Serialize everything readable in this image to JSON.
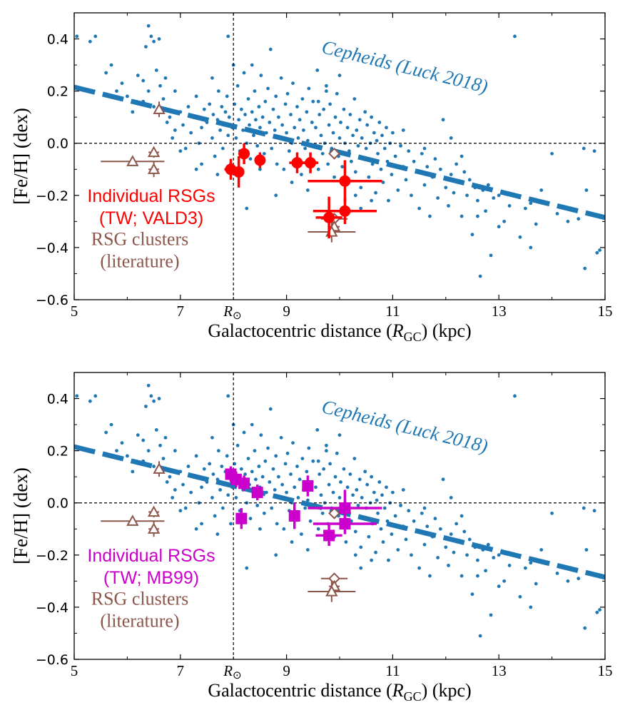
{
  "colors": {
    "cepheid": "#1f77b4",
    "rsg_vald3": "#ff0000",
    "rsg_mb99": "#cc00cc",
    "clusters": "#8c564b",
    "axis": "#000000"
  },
  "common": {
    "xlabel_prefix": "Galactocentric distance (",
    "xlabel_sym": "R",
    "xlabel_sub": "GC",
    "xlabel_suffix": ")  (kpc)",
    "ylabel": "[Fe/H]  (dex)",
    "rsun_label": "R",
    "rsun_sub": "⊙",
    "xticks": [
      5,
      7,
      9,
      11,
      13,
      15
    ],
    "yticks": [
      -0.6,
      -0.4,
      -0.2,
      0.0,
      0.2,
      0.4
    ],
    "ytick_labels": [
      "−0.6",
      "−0.4",
      "−0.2",
      "0.0",
      "0.2",
      "0.4"
    ],
    "xlim": [
      5,
      15
    ],
    "ylim": [
      -0.6,
      0.5
    ],
    "r_sun": 8.0,
    "cepheid_label": "Cepheids (Luck 2018)",
    "cepheid_fit": {
      "x0": 5,
      "y0": 0.215,
      "x1": 15,
      "y1": -0.285
    },
    "cluster_label_1": "RSG clusters",
    "cluster_label_2": "(literature)"
  },
  "chart_data": [
    {
      "type": "scatter",
      "panel": "top",
      "title": "",
      "xlabel": "Galactocentric distance (RGC)  (kpc)",
      "ylabel": "[Fe/H]  (dex)",
      "xlim": [
        5,
        15
      ],
      "ylim": [
        -0.6,
        0.5
      ],
      "legend_line1": "Individual RSGs",
      "legend_line2": "(TW; VALD3)",
      "series": [
        {
          "name": "Individual RSGs (TW; VALD3)",
          "marker": "circle",
          "points": [
            {
              "x": 7.95,
              "y": -0.1,
              "xerr": 0.12,
              "yerr": 0.04
            },
            {
              "x": 8.1,
              "y": -0.11,
              "xerr": 0.1,
              "yerr": 0.06
            },
            {
              "x": 8.2,
              "y": -0.04,
              "xerr": 0.08,
              "yerr": 0.04
            },
            {
              "x": 8.5,
              "y": -0.065,
              "xerr": 0.06,
              "yerr": 0.03
            },
            {
              "x": 9.2,
              "y": -0.075,
              "xerr": 0.15,
              "yerr": 0.04
            },
            {
              "x": 9.45,
              "y": -0.075,
              "xerr": 0.15,
              "yerr": 0.04
            },
            {
              "x": 10.1,
              "y": -0.145,
              "xerr": 0.7,
              "yerr": 0.08
            },
            {
              "x": 10.1,
              "y": -0.26,
              "xerr": 0.6,
              "yerr": 0.05
            },
            {
              "x": 9.8,
              "y": -0.285,
              "xerr": 0.25,
              "yerr": 0.08
            }
          ]
        },
        {
          "name": "RSG clusters (literature)",
          "marker": "triangle/diamond",
          "points": [
            {
              "x": 6.6,
              "y": 0.13,
              "xerr": 0.05,
              "yerr": 0.03,
              "m": "tri"
            },
            {
              "x": 6.1,
              "y": -0.07,
              "xerr": 0.6,
              "yerr": 0.0,
              "m": "tri"
            },
            {
              "x": 6.5,
              "y": -0.035,
              "xerr": 0.1,
              "yerr": 0.02,
              "m": "tri"
            },
            {
              "x": 6.5,
              "y": -0.1,
              "xerr": 0.1,
              "yerr": 0.03,
              "m": "tri"
            },
            {
              "x": 9.9,
              "y": -0.04,
              "xerr": 0.0,
              "yerr": 0.0,
              "m": "dia"
            },
            {
              "x": 9.9,
              "y": -0.29,
              "xerr": 0.25,
              "yerr": 0.02,
              "m": "dia"
            },
            {
              "x": 9.9,
              "y": -0.32,
              "xerr": 0.1,
              "yerr": 0.02,
              "m": "tri"
            },
            {
              "x": 9.85,
              "y": -0.34,
              "xerr": 0.45,
              "yerr": 0.04,
              "m": "tri"
            }
          ]
        }
      ]
    },
    {
      "type": "scatter",
      "panel": "bottom",
      "title": "",
      "xlabel": "Galactocentric distance (RGC)  (kpc)",
      "ylabel": "[Fe/H]  (dex)",
      "xlim": [
        5,
        15
      ],
      "ylim": [
        -0.6,
        0.5
      ],
      "legend_line1": "Individual RSGs",
      "legend_line2": "(TW; MB99)",
      "series": [
        {
          "name": "Individual RSGs (TW; MB99)",
          "marker": "square",
          "points": [
            {
              "x": 7.95,
              "y": 0.11,
              "xerr": 0.08,
              "yerr": 0.03
            },
            {
              "x": 8.05,
              "y": 0.09,
              "xerr": 0.1,
              "yerr": 0.03
            },
            {
              "x": 8.2,
              "y": 0.075,
              "xerr": 0.1,
              "yerr": 0.03
            },
            {
              "x": 8.45,
              "y": 0.04,
              "xerr": 0.08,
              "yerr": 0.03
            },
            {
              "x": 8.15,
              "y": -0.06,
              "xerr": 0.08,
              "yerr": 0.04
            },
            {
              "x": 9.15,
              "y": -0.05,
              "xerr": 0.1,
              "yerr": 0.05
            },
            {
              "x": 9.4,
              "y": 0.065,
              "xerr": 0.1,
              "yerr": 0.04
            },
            {
              "x": 10.1,
              "y": -0.02,
              "xerr": 0.7,
              "yerr": 0.07
            },
            {
              "x": 10.1,
              "y": -0.08,
              "xerr": 0.6,
              "yerr": 0.04
            },
            {
              "x": 9.8,
              "y": -0.125,
              "xerr": 0.25,
              "yerr": 0.04
            }
          ]
        },
        {
          "name": "RSG clusters (literature)",
          "marker": "triangle/diamond",
          "points": [
            {
              "x": 6.6,
              "y": 0.13,
              "xerr": 0.05,
              "yerr": 0.03,
              "m": "tri"
            },
            {
              "x": 6.1,
              "y": -0.07,
              "xerr": 0.6,
              "yerr": 0.0,
              "m": "tri"
            },
            {
              "x": 6.5,
              "y": -0.035,
              "xerr": 0.1,
              "yerr": 0.02,
              "m": "tri"
            },
            {
              "x": 6.5,
              "y": -0.1,
              "xerr": 0.1,
              "yerr": 0.03,
              "m": "tri"
            },
            {
              "x": 9.9,
              "y": -0.04,
              "xerr": 0.0,
              "yerr": 0.0,
              "m": "dia"
            },
            {
              "x": 9.9,
              "y": -0.29,
              "xerr": 0.25,
              "yerr": 0.02,
              "m": "dia"
            },
            {
              "x": 9.9,
              "y": -0.32,
              "xerr": 0.1,
              "yerr": 0.02,
              "m": "tri"
            },
            {
              "x": 9.85,
              "y": -0.34,
              "xerr": 0.45,
              "yerr": 0.04,
              "m": "tri"
            }
          ]
        }
      ]
    }
  ],
  "cepheids": [
    [
      5.05,
      0.41
    ],
    [
      5.3,
      0.39
    ],
    [
      5.4,
      0.41
    ],
    [
      5.6,
      0.27
    ],
    [
      5.7,
      0.3
    ],
    [
      5.8,
      0.2
    ],
    [
      5.9,
      0.23
    ],
    [
      6.0,
      0.18
    ],
    [
      6.1,
      0.12
    ],
    [
      6.2,
      0.26
    ],
    [
      6.3,
      0.16
    ],
    [
      6.35,
      0.37
    ],
    [
      6.4,
      0.45
    ],
    [
      6.45,
      0.41
    ],
    [
      6.5,
      0.39
    ],
    [
      6.55,
      0.28
    ],
    [
      6.6,
      0.4
    ],
    [
      6.62,
      0.22
    ],
    [
      6.68,
      0.17
    ],
    [
      6.72,
      0.25
    ],
    [
      6.75,
      0.08
    ],
    [
      6.5,
      0.14
    ],
    [
      6.4,
      0.2
    ],
    [
      6.3,
      0.24
    ],
    [
      6.8,
      0.1
    ],
    [
      6.85,
      0.02
    ],
    [
      6.9,
      0.05
    ],
    [
      7.0,
      0.12
    ],
    [
      7.05,
      0.07
    ],
    [
      7.1,
      -0.02
    ],
    [
      7.15,
      0.14
    ],
    [
      7.2,
      0.04
    ],
    [
      7.25,
      0.1
    ],
    [
      7.3,
      0.18
    ],
    [
      7.35,
      0.0
    ],
    [
      7.4,
      0.06
    ],
    [
      7.45,
      0.13
    ],
    [
      7.5,
      0.08
    ],
    [
      7.55,
      0.15
    ],
    [
      7.6,
      0.02
    ],
    [
      7.62,
      0.11
    ],
    [
      7.65,
      -0.05
    ],
    [
      7.7,
      0.09
    ],
    [
      7.72,
      0.2
    ],
    [
      7.75,
      0.05
    ],
    [
      7.78,
      0.14
    ],
    [
      7.8,
      -0.02
    ],
    [
      7.82,
      0.07
    ],
    [
      7.85,
      0.12
    ],
    [
      7.88,
      0.18
    ],
    [
      7.9,
      0.03
    ],
    [
      7.92,
      0.1
    ],
    [
      7.95,
      -0.08
    ],
    [
      7.98,
      0.06
    ],
    [
      8.02,
      0.15
    ],
    [
      8.05,
      0.02
    ],
    [
      8.08,
      0.22
    ],
    [
      8.1,
      0.09
    ],
    [
      8.12,
      -0.03
    ],
    [
      8.15,
      0.13
    ],
    [
      8.18,
      0.05
    ],
    [
      8.2,
      0.27
    ],
    [
      8.22,
      0.11
    ],
    [
      8.25,
      0.0
    ],
    [
      8.28,
      0.17
    ],
    [
      8.3,
      0.07
    ],
    [
      8.32,
      -0.06
    ],
    [
      8.35,
      0.12
    ],
    [
      8.38,
      0.03
    ],
    [
      8.4,
      0.2
    ],
    [
      8.42,
      0.09
    ],
    [
      8.45,
      -0.01
    ],
    [
      8.48,
      0.14
    ],
    [
      8.5,
      0.06
    ],
    [
      8.52,
      0.26
    ],
    [
      8.55,
      0.1
    ],
    [
      8.58,
      -0.04
    ],
    [
      8.6,
      0.16
    ],
    [
      8.62,
      0.04
    ],
    [
      8.65,
      0.21
    ],
    [
      8.68,
      0.08
    ],
    [
      8.7,
      0.36
    ],
    [
      8.72,
      -0.02
    ],
    [
      8.75,
      0.13
    ],
    [
      8.78,
      0.05
    ],
    [
      8.8,
      0.18
    ],
    [
      8.82,
      -0.08
    ],
    [
      8.85,
      0.1
    ],
    [
      8.88,
      0.02
    ],
    [
      8.9,
      0.25
    ],
    [
      8.92,
      0.07
    ],
    [
      8.95,
      -0.1
    ],
    [
      8.98,
      0.15
    ],
    [
      9.0,
      0.04
    ],
    [
      9.02,
      0.19
    ],
    [
      9.05,
      -0.03
    ],
    [
      9.08,
      0.11
    ],
    [
      9.1,
      0.0
    ],
    [
      9.12,
      0.23
    ],
    [
      9.15,
      0.06
    ],
    [
      9.18,
      -0.06
    ],
    [
      9.2,
      0.14
    ],
    [
      9.22,
      0.02
    ],
    [
      9.25,
      0.09
    ],
    [
      9.28,
      -0.12
    ],
    [
      9.3,
      0.17
    ],
    [
      9.32,
      0.05
    ],
    [
      9.35,
      -0.02
    ],
    [
      9.38,
      0.12
    ],
    [
      9.4,
      0.01
    ],
    [
      9.42,
      0.21
    ],
    [
      9.45,
      -0.07
    ],
    [
      9.48,
      0.08
    ],
    [
      9.5,
      0.16
    ],
    [
      9.52,
      -0.01
    ],
    [
      9.55,
      0.06
    ],
    [
      9.58,
      0.28
    ],
    [
      9.6,
      -0.1
    ],
    [
      9.62,
      0.11
    ],
    [
      9.65,
      0.03
    ],
    [
      9.68,
      -0.04
    ],
    [
      9.7,
      0.13
    ],
    [
      9.72,
      0.0
    ],
    [
      9.75,
      0.22
    ],
    [
      9.78,
      -0.08
    ],
    [
      9.8,
      0.07
    ],
    [
      9.82,
      0.15
    ],
    [
      9.85,
      -0.02
    ],
    [
      9.88,
      0.04
    ],
    [
      9.9,
      -0.13
    ],
    [
      9.92,
      0.1
    ],
    [
      9.95,
      0.19
    ],
    [
      9.98,
      -0.05
    ],
    [
      10.0,
      0.02
    ],
    [
      10.02,
      0.08
    ],
    [
      10.05,
      -0.09
    ],
    [
      10.08,
      0.13
    ],
    [
      10.1,
      0.0
    ],
    [
      10.12,
      -0.15
    ],
    [
      10.15,
      0.06
    ],
    [
      10.18,
      -0.03
    ],
    [
      10.2,
      0.11
    ],
    [
      10.22,
      -0.07
    ],
    [
      10.25,
      0.03
    ],
    [
      10.28,
      0.17
    ],
    [
      10.3,
      -0.11
    ],
    [
      10.32,
      0.05
    ],
    [
      10.35,
      -0.01
    ],
    [
      10.38,
      0.09
    ],
    [
      10.4,
      -0.17
    ],
    [
      10.42,
      0.02
    ],
    [
      10.45,
      -0.06
    ],
    [
      10.48,
      0.12
    ],
    [
      10.5,
      -0.02
    ],
    [
      10.52,
      0.07
    ],
    [
      10.55,
      -0.13
    ],
    [
      10.58,
      0.0
    ],
    [
      10.6,
      0.1
    ],
    [
      10.62,
      -0.08
    ],
    [
      10.65,
      0.04
    ],
    [
      10.68,
      -0.19
    ],
    [
      10.7,
      0.01
    ],
    [
      10.72,
      -0.04
    ],
    [
      10.75,
      0.08
    ],
    [
      10.78,
      -0.1
    ],
    [
      10.8,
      0.03
    ],
    [
      10.82,
      -0.15
    ],
    [
      10.85,
      -0.02
    ],
    [
      10.88,
      0.06
    ],
    [
      10.9,
      -0.07
    ],
    [
      10.92,
      -0.22
    ],
    [
      10.95,
      0.0
    ],
    [
      10.98,
      -0.12
    ],
    [
      11.0,
      0.04
    ],
    [
      11.05,
      -0.05
    ],
    [
      11.1,
      -0.18
    ],
    [
      11.15,
      -0.01
    ],
    [
      11.2,
      -0.09
    ],
    [
      11.25,
      -0.14
    ],
    [
      11.3,
      -0.03
    ],
    [
      11.35,
      -0.2
    ],
    [
      11.4,
      -0.07
    ],
    [
      11.45,
      -0.11
    ],
    [
      11.5,
      -0.25
    ],
    [
      11.55,
      -0.04
    ],
    [
      11.6,
      -0.16
    ],
    [
      11.65,
      -0.09
    ],
    [
      11.7,
      -0.28
    ],
    [
      11.75,
      -0.13
    ],
    [
      11.8,
      -0.06
    ],
    [
      11.85,
      -0.21
    ],
    [
      11.9,
      -0.1
    ],
    [
      11.95,
      0.09
    ],
    [
      12.0,
      -0.17
    ],
    [
      12.05,
      -0.24
    ],
    [
      12.1,
      -0.12
    ],
    [
      12.15,
      -0.19
    ],
    [
      12.2,
      -0.08
    ],
    [
      12.25,
      -0.15
    ],
    [
      12.3,
      -0.28
    ],
    [
      12.35,
      -0.11
    ],
    [
      12.4,
      -0.2
    ],
    [
      12.45,
      -0.14
    ],
    [
      12.5,
      -0.35
    ],
    [
      12.55,
      -0.17
    ],
    [
      12.6,
      -0.22
    ],
    [
      12.65,
      -0.51
    ],
    [
      12.7,
      -0.18
    ],
    [
      12.75,
      -0.26
    ],
    [
      12.8,
      -0.16
    ],
    [
      12.85,
      -0.43
    ],
    [
      12.9,
      -0.21
    ],
    [
      13.0,
      -0.2
    ],
    [
      13.1,
      -0.3
    ],
    [
      13.2,
      -0.24
    ],
    [
      13.3,
      0.41
    ],
    [
      13.4,
      -0.36
    ],
    [
      13.5,
      -0.25
    ],
    [
      13.6,
      -0.23
    ],
    [
      13.7,
      -0.31
    ],
    [
      13.8,
      -0.18
    ],
    [
      14.0,
      -0.04
    ],
    [
      14.1,
      -0.27
    ],
    [
      14.3,
      -0.3
    ],
    [
      14.5,
      -0.29
    ],
    [
      14.6,
      -0.02
    ],
    [
      14.62,
      -0.48
    ],
    [
      14.65,
      -0.18
    ],
    [
      14.8,
      -0.03
    ],
    [
      14.85,
      -0.42
    ],
    [
      14.9,
      -0.41
    ],
    [
      6.9,
      0.2
    ],
    [
      7.0,
      -0.03
    ],
    [
      7.3,
      -0.1
    ],
    [
      7.6,
      0.25
    ],
    [
      7.9,
      0.41
    ],
    [
      8.0,
      0.3
    ],
    [
      8.25,
      -0.25
    ],
    [
      8.5,
      -0.1
    ],
    [
      8.8,
      -0.2
    ],
    [
      9.1,
      -0.15
    ],
    [
      9.4,
      -0.18
    ],
    [
      9.6,
      0.16
    ],
    [
      10.0,
      0.26
    ],
    [
      10.3,
      -0.2
    ],
    [
      10.6,
      -0.22
    ],
    [
      11.2,
      0.05
    ],
    [
      11.6,
      -0.02
    ],
    [
      12.1,
      0.02
    ],
    [
      12.3,
      -0.05
    ],
    [
      12.6,
      -0.28
    ],
    [
      13.0,
      -0.32
    ],
    [
      13.6,
      -0.4
    ],
    [
      7.4,
      -0.08
    ],
    [
      7.7,
      -0.12
    ],
    [
      8.35,
      0.3
    ],
    [
      9.75,
      0.2
    ],
    [
      10.4,
      -0.25
    ]
  ]
}
